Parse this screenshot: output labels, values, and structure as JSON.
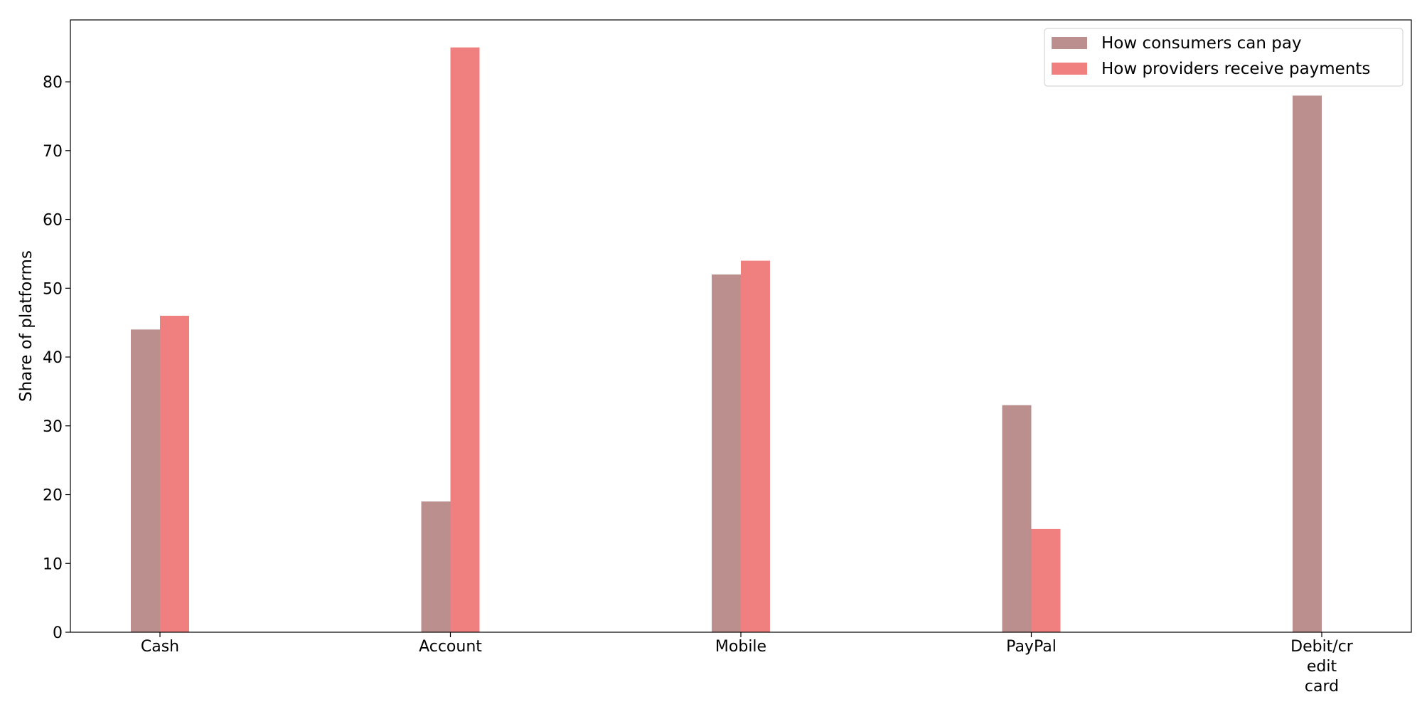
{
  "chart_data": {
    "type": "bar",
    "categories": [
      [
        "Cash"
      ],
      [
        "Account"
      ],
      [
        "Mobile"
      ],
      [
        "PayPal"
      ],
      [
        "Debit/cr",
        "edit",
        "card"
      ]
    ],
    "series": [
      {
        "name": "How consumers can pay",
        "color": "#bc8f8f",
        "values": [
          44,
          19,
          52,
          33,
          78
        ]
      },
      {
        "name": "How providers receive payments",
        "color": "#f08080",
        "values": [
          46,
          85,
          54,
          15,
          null
        ]
      }
    ],
    "xlabel": "",
    "ylabel": "Share of platforms",
    "ylim": [
      0,
      89
    ],
    "yticks": [
      0,
      10,
      20,
      30,
      40,
      50,
      60,
      70,
      80
    ],
    "grid": false,
    "legend_position": "top-right"
  }
}
